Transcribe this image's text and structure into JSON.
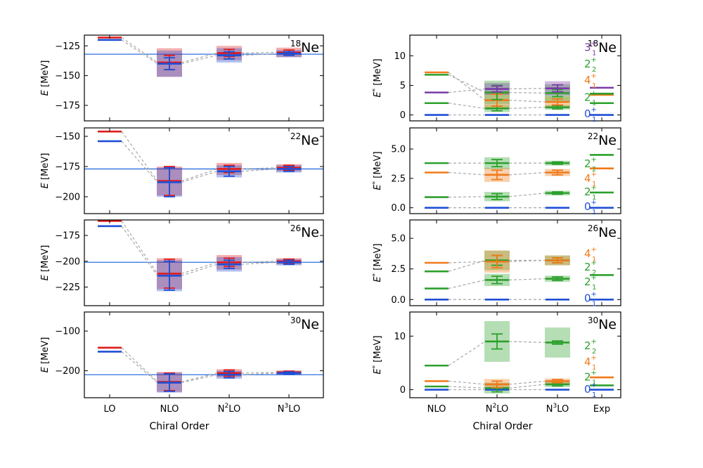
{
  "figure": {
    "left_xlabel": "Chiral Order",
    "right_xlabel": "Chiral Order",
    "left_ylabel": "E [MeV]",
    "right_ylabel": "E* [MeV]"
  },
  "colors": {
    "red": "#e01b1b",
    "blue": "#1f4fd6",
    "green": "#2ca02c",
    "orange": "#f07a1a",
    "purple": "#7a3aa8",
    "ref_line": "#2f6fe0",
    "dash": "#a8a8a8"
  },
  "chart_data": [
    {
      "id": "L18",
      "type": "level-scheme",
      "nucleus_mass": "18",
      "nucleus_symbol": "Ne",
      "ylabel_var": "E",
      "ylabel_unit": " [MeV]",
      "categories": [
        "LO",
        "NLO",
        "N2LO",
        "N3LO"
      ],
      "ylim": [
        -188,
        -116
      ],
      "yticks": [
        -125,
        -150,
        -175
      ],
      "reference_line": -132,
      "states": [
        {
          "name": "upper",
          "color": "red",
          "values": [
            -118,
            -139,
            -131,
            -130.5
          ],
          "err_low": [
            0,
            6,
            3,
            2
          ],
          "err_high": [
            0,
            6,
            3,
            2
          ],
          "box_low": [
            0,
            12,
            6,
            4
          ],
          "box_high": [
            0,
            12,
            6,
            4
          ]
        },
        {
          "name": "lower",
          "color": "blue",
          "values": [
            -120,
            -140,
            -133,
            -131.5
          ],
          "err_low": [
            0,
            5,
            3,
            1.5
          ],
          "err_high": [
            0,
            5,
            3,
            1.5
          ],
          "box_low": [
            0,
            11,
            6,
            3
          ],
          "box_high": [
            0,
            11,
            6,
            3
          ]
        }
      ]
    },
    {
      "id": "L22",
      "type": "level-scheme",
      "nucleus_mass": "22",
      "nucleus_symbol": "Ne",
      "ylabel_var": "E",
      "ylabel_unit": " [MeV]",
      "categories": [
        "LO",
        "NLO",
        "N2LO",
        "N3LO"
      ],
      "ylim": [
        -214,
        -143
      ],
      "yticks": [
        -150,
        -175,
        -200
      ],
      "reference_line": -177,
      "states": [
        {
          "name": "upper",
          "color": "red",
          "values": [
            -146,
            -187,
            -177,
            -176
          ],
          "err_low": [
            0,
            12,
            3,
            2
          ],
          "err_high": [
            0,
            12,
            3,
            2
          ],
          "box_low": [
            0,
            12,
            5,
            3
          ],
          "box_high": [
            0,
            12,
            5,
            3
          ]
        },
        {
          "name": "lower",
          "color": "blue",
          "values": [
            -154,
            -188,
            -179,
            -177
          ],
          "err_low": [
            0,
            12,
            4,
            2
          ],
          "err_high": [
            0,
            12,
            4,
            2
          ],
          "box_low": [
            0,
            12,
            5,
            3
          ],
          "box_high": [
            0,
            12,
            5,
            3
          ]
        }
      ]
    },
    {
      "id": "L26",
      "type": "level-scheme",
      "nucleus_mass": "26",
      "nucleus_symbol": "Ne",
      "ylabel_var": "E",
      "ylabel_unit": " [MeV]",
      "categories": [
        "LO",
        "NLO",
        "N2LO",
        "N3LO"
      ],
      "ylim": [
        -243,
        -160
      ],
      "yticks": [
        -175,
        -200,
        -225
      ],
      "reference_line": -201,
      "states": [
        {
          "name": "upper",
          "color": "red",
          "values": [
            -161,
            -212,
            -201,
            -200
          ],
          "err_low": [
            0,
            14,
            4,
            2
          ],
          "err_high": [
            0,
            14,
            4,
            2
          ],
          "box_low": [
            0,
            15,
            7,
            3
          ],
          "box_high": [
            0,
            15,
            7,
            3
          ]
        },
        {
          "name": "lower",
          "color": "blue",
          "values": [
            -166,
            -214,
            -203,
            -201
          ],
          "err_low": [
            0,
            14,
            4,
            2
          ],
          "err_high": [
            0,
            14,
            4,
            2
          ],
          "box_low": [
            0,
            15,
            7,
            3
          ],
          "box_high": [
            0,
            15,
            7,
            3
          ]
        }
      ]
    },
    {
      "id": "L30",
      "type": "level-scheme",
      "nucleus_mass": "30",
      "nucleus_symbol": "Ne",
      "ylabel_var": "E",
      "ylabel_unit": " [MeV]",
      "categories": [
        "LO",
        "NLO",
        "N2LO",
        "N3LO"
      ],
      "ylim": [
        -268,
        -52
      ],
      "yticks": [
        -100,
        -200
      ],
      "reference_line": -210,
      "states": [
        {
          "name": "upper",
          "color": "red",
          "values": [
            -142,
            -228,
            -206,
            -204
          ],
          "err_low": [
            0,
            22,
            8,
            3
          ],
          "err_high": [
            0,
            22,
            8,
            3
          ],
          "box_low": [
            0,
            25,
            10,
            5
          ],
          "box_high": [
            0,
            25,
            10,
            5
          ]
        },
        {
          "name": "lower",
          "color": "blue",
          "values": [
            -152,
            -230,
            -210,
            -206
          ],
          "err_low": [
            0,
            22,
            8,
            3
          ],
          "err_high": [
            0,
            22,
            8,
            3
          ],
          "box_low": [
            0,
            25,
            10,
            5
          ],
          "box_high": [
            0,
            25,
            10,
            5
          ]
        }
      ]
    },
    {
      "id": "R18",
      "type": "level-scheme",
      "nucleus_mass": "18",
      "nucleus_symbol": "Ne",
      "ylabel_var": "E",
      "ylabel_unit": " [MeV]",
      "categories": [
        "NLO",
        "N2LO",
        "N3LO",
        "Exp"
      ],
      "ylim": [
        -1,
        13.5
      ],
      "yticks": [
        0,
        5,
        10
      ],
      "states": [
        {
          "name": "0₁⁺",
          "label_sub": "1",
          "label_sup": "+",
          "label_base": "0",
          "color": "blue",
          "label_y": 0.2,
          "values": [
            0,
            0,
            0,
            0
          ],
          "err_low": [
            0,
            0,
            0,
            0
          ],
          "err_high": [
            0,
            0,
            0,
            0
          ],
          "box_low": [
            0,
            0,
            0,
            0
          ],
          "box_high": [
            0,
            0,
            0,
            0
          ]
        },
        {
          "name": "2₁⁺",
          "label_sub": "1",
          "label_sup": "+",
          "label_base": "2",
          "color": "green",
          "label_y": 3.0,
          "values": [
            2.0,
            1.1,
            1.3,
            2.0
          ],
          "err_low": [
            0,
            0.4,
            0.3,
            0
          ],
          "err_high": [
            0,
            0.4,
            0.3,
            0
          ],
          "box_low": [
            0,
            0.6,
            0.4,
            0
          ],
          "box_high": [
            0,
            0.6,
            0.4,
            0
          ]
        },
        {
          "name": "4₁⁺",
          "label_sub": "1",
          "label_sup": "+",
          "label_base": "4",
          "color": "orange",
          "label_y": 5.9,
          "values": [
            7.2,
            2.5,
            2.2,
            3.4
          ],
          "err_low": [
            0,
            1.0,
            0.5,
            0
          ],
          "err_high": [
            0,
            1.0,
            0.5,
            0
          ],
          "box_low": [
            0,
            1.5,
            1.0,
            0
          ],
          "box_high": [
            0,
            1.5,
            1.0,
            0
          ]
        },
        {
          "name": "2₂⁺",
          "label_sub": "2",
          "label_sup": "+",
          "label_base": "2",
          "color": "green",
          "label_y": 8.6,
          "values": [
            6.8,
            3.8,
            3.7,
            3.6
          ],
          "err_low": [
            0,
            1.2,
            0.6,
            0
          ],
          "err_high": [
            0,
            1.2,
            0.6,
            0
          ],
          "box_low": [
            0,
            2.0,
            1.5,
            0
          ],
          "box_high": [
            0,
            2.0,
            1.5,
            0
          ]
        },
        {
          "name": "3₁⁺",
          "label_sub": "1",
          "label_sup": "+",
          "label_base": "3",
          "color": "purple",
          "label_y": 11.4,
          "values": [
            3.8,
            4.4,
            4.5,
            4.6
          ],
          "err_low": [
            0,
            0.5,
            0.6,
            0
          ],
          "err_high": [
            0,
            0.5,
            0.6,
            0
          ],
          "box_low": [
            0,
            1.0,
            1.2,
            0
          ],
          "box_high": [
            0,
            1.0,
            1.2,
            0
          ]
        }
      ]
    },
    {
      "id": "R22",
      "type": "level-scheme",
      "nucleus_mass": "22",
      "nucleus_symbol": "Ne",
      "ylabel_var": "E",
      "ylabel_unit": " [MeV]",
      "categories": [
        "NLO",
        "N2LO",
        "N3LO",
        "Exp"
      ],
      "ylim": [
        -0.5,
        6.8
      ],
      "yticks": [
        0.0,
        2.5,
        5.0
      ],
      "states": [
        {
          "name": "0₁⁺",
          "label_sub": "1",
          "label_sup": "+",
          "label_base": "0",
          "color": "blue",
          "label_y": 0.1,
          "values": [
            0,
            0,
            0,
            0
          ],
          "err_low": [
            0,
            0,
            0,
            0
          ],
          "err_high": [
            0,
            0,
            0,
            0
          ],
          "box_low": [
            0,
            0,
            0,
            0
          ],
          "box_high": [
            0,
            0,
            0,
            0
          ]
        },
        {
          "name": "2₁⁺",
          "label_sub": "1",
          "label_sup": "+",
          "label_base": "2",
          "color": "green",
          "label_y": 1.35,
          "values": [
            0.9,
            0.95,
            1.25,
            1.3
          ],
          "err_low": [
            0,
            0.25,
            0.1,
            0
          ],
          "err_high": [
            0,
            0.25,
            0.1,
            0
          ],
          "box_low": [
            0,
            0.4,
            0.2,
            0
          ],
          "box_high": [
            0,
            0.4,
            0.2,
            0
          ]
        },
        {
          "name": "4₁⁺",
          "label_sub": "1",
          "label_sup": "+",
          "label_base": "4",
          "color": "orange",
          "label_y": 2.5,
          "values": [
            3.0,
            2.8,
            3.0,
            3.35
          ],
          "err_low": [
            0,
            0.4,
            0.2,
            0
          ],
          "err_high": [
            0,
            0.4,
            0.2,
            0
          ],
          "box_low": [
            0,
            0.6,
            0.3,
            0
          ],
          "box_high": [
            0,
            0.6,
            0.3,
            0
          ]
        },
        {
          "name": "2₂⁺",
          "label_sub": "2",
          "label_sup": "+",
          "label_base": "2",
          "color": "green",
          "label_y": 3.75,
          "values": [
            3.8,
            3.8,
            3.8,
            4.5
          ],
          "err_low": [
            0,
            0.3,
            0.1,
            0
          ],
          "err_high": [
            0,
            0.3,
            0.1,
            0
          ],
          "box_low": [
            0,
            0.5,
            0.2,
            0
          ],
          "box_high": [
            0,
            0.5,
            0.2,
            0
          ]
        }
      ]
    },
    {
      "id": "R26",
      "type": "level-scheme",
      "nucleus_mass": "26",
      "nucleus_symbol": "Ne",
      "ylabel_var": "E",
      "ylabel_unit": " [MeV]",
      "categories": [
        "NLO",
        "N2LO",
        "N3LO",
        "Exp"
      ],
      "ylim": [
        -0.5,
        6.5
      ],
      "yticks": [
        0.0,
        2.5,
        5.0
      ],
      "states": [
        {
          "name": "0₁⁺",
          "label_sub": "1",
          "label_sup": "+",
          "label_base": "0",
          "color": "blue",
          "label_y": 0.1,
          "values": [
            0,
            0,
            0,
            0
          ],
          "err_low": [
            0,
            0,
            0,
            0
          ],
          "err_high": [
            0,
            0,
            0,
            0
          ],
          "box_low": [
            0,
            0,
            0,
            0
          ],
          "box_high": [
            0,
            0,
            0,
            0
          ]
        },
        {
          "name": "2₁⁺",
          "label_sub": "1",
          "label_sup": "+",
          "label_base": "2",
          "color": "green",
          "label_y": 1.45,
          "values": [
            0.9,
            1.6,
            1.7,
            2.0
          ],
          "err_low": [
            0,
            0.3,
            0.15,
            0
          ],
          "err_high": [
            0,
            0.3,
            0.15,
            0
          ],
          "box_low": [
            0,
            0.5,
            0.25,
            0
          ],
          "box_high": [
            0,
            0.5,
            0.25,
            0
          ]
        },
        {
          "name": "2₂⁺",
          "label_sub": "2",
          "label_sup": "+",
          "label_base": "2",
          "color": "green",
          "label_y": 2.65,
          "values": [
            2.3,
            3.2,
            3.2,
            null
          ],
          "err_low": [
            0,
            0.4,
            0.2,
            0
          ],
          "err_high": [
            0,
            0.4,
            0.2,
            0
          ],
          "box_low": [
            0,
            0.8,
            0.4,
            0
          ],
          "box_high": [
            0,
            0.8,
            0.4,
            0
          ]
        },
        {
          "name": "4₁⁺",
          "label_sub": "1",
          "label_sup": "+",
          "label_base": "4",
          "color": "orange",
          "label_y": 3.75,
          "values": [
            3.0,
            3.1,
            3.2,
            null
          ],
          "err_low": [
            0,
            0.5,
            0.2,
            0
          ],
          "err_high": [
            0,
            0.5,
            0.2,
            0
          ],
          "box_low": [
            0,
            0.9,
            0.4,
            0
          ],
          "box_high": [
            0,
            0.9,
            0.4,
            0
          ]
        }
      ]
    },
    {
      "id": "R30",
      "type": "level-scheme",
      "nucleus_mass": "30",
      "nucleus_symbol": "Ne",
      "ylabel_var": "E",
      "ylabel_unit": " [MeV]",
      "categories": [
        "NLO",
        "N2LO",
        "N3LO",
        "Exp"
      ],
      "ylim": [
        -1.5,
        14.5
      ],
      "yticks": [
        0,
        10
      ],
      "states": [
        {
          "name": "0₁⁺",
          "label_sub": "1",
          "label_sup": "+",
          "label_base": "0",
          "color": "blue",
          "label_y": 0.1,
          "values": [
            0,
            0,
            0,
            0
          ],
          "err_low": [
            0,
            0,
            0,
            0
          ],
          "err_high": [
            0,
            0,
            0,
            0
          ],
          "box_low": [
            0,
            0,
            0,
            0
          ],
          "box_high": [
            0,
            0,
            0,
            0
          ]
        },
        {
          "name": "2₁⁺",
          "label_sub": "1",
          "label_sup": "+",
          "label_base": "2",
          "color": "green",
          "label_y": 2.4,
          "values": [
            0.6,
            0.3,
            1.0,
            0.8
          ],
          "err_low": [
            0,
            0.7,
            0.3,
            0
          ],
          "err_high": [
            0,
            0.7,
            0.3,
            0
          ],
          "box_low": [
            0,
            1.0,
            0.5,
            0
          ],
          "box_high": [
            0,
            1.0,
            0.5,
            0
          ]
        },
        {
          "name": "4₁⁺",
          "label_sub": "1",
          "label_sup": "+",
          "label_base": "4",
          "color": "orange",
          "label_y": 5.2,
          "values": [
            1.6,
            1.0,
            1.6,
            2.3
          ],
          "err_low": [
            0,
            0.6,
            0.3,
            0
          ],
          "err_high": [
            0,
            0.6,
            0.3,
            0
          ],
          "box_low": [
            0,
            1.0,
            0.5,
            0
          ],
          "box_high": [
            0,
            1.0,
            0.5,
            0
          ]
        },
        {
          "name": "2₂⁺",
          "label_sub": "2",
          "label_sup": "+",
          "label_base": "2",
          "color": "green",
          "label_y": 8.2,
          "values": [
            4.5,
            9.0,
            8.8,
            null
          ],
          "err_low": [
            0,
            1.4,
            0.3,
            0
          ],
          "err_high": [
            0,
            1.4,
            0.3,
            0
          ],
          "box_low": [
            0,
            3.8,
            2.8,
            0
          ],
          "box_high": [
            0,
            3.8,
            2.8,
            0
          ]
        }
      ]
    }
  ]
}
